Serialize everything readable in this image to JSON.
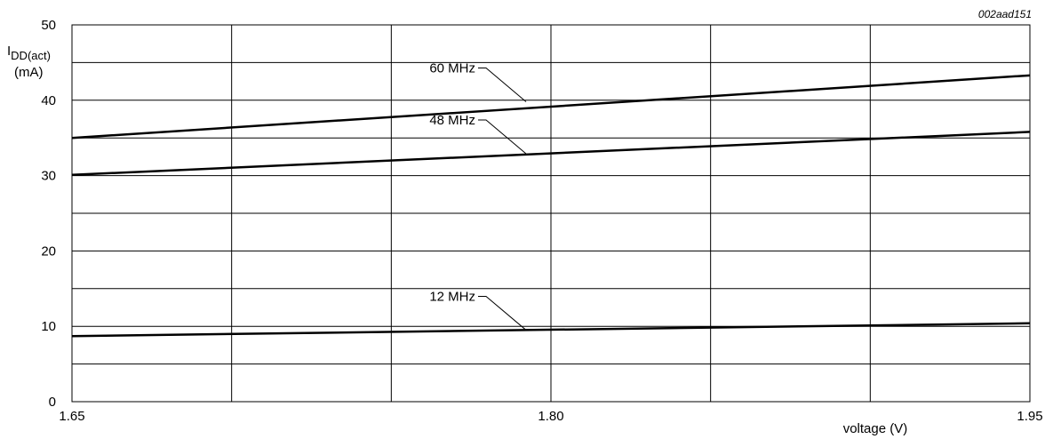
{
  "chart_data": {
    "type": "line",
    "figure_id": "002aad151",
    "ylabel": {
      "main": "I",
      "subscript": "DD(act)",
      "unit": "(mA)"
    },
    "xlabel": "voltage (V)",
    "xlim": [
      1.65,
      1.95
    ],
    "ylim": [
      0,
      50
    ],
    "x_ticks": [
      "1.65",
      "1.80",
      "1.95"
    ],
    "y_ticks": [
      "0",
      "10",
      "20",
      "30",
      "40",
      "50"
    ],
    "grid": true,
    "x_grid_values": [
      1.65,
      1.7,
      1.75,
      1.8,
      1.85,
      1.9,
      1.95
    ],
    "y_grid_values": [
      0,
      5,
      10,
      15,
      20,
      25,
      30,
      35,
      40,
      45,
      50
    ],
    "series": [
      {
        "name": "60 MHz",
        "x": [
          1.65,
          1.95
        ],
        "y": [
          35.0,
          43.3
        ],
        "label_anchor": [
          1.8,
          39.8
        ]
      },
      {
        "name": "48 MHz",
        "x": [
          1.65,
          1.95
        ],
        "y": [
          30.1,
          35.8
        ],
        "label_anchor": [
          1.8,
          32.9
        ]
      },
      {
        "name": "12 MHz",
        "x": [
          1.65,
          1.95
        ],
        "y": [
          8.7,
          10.4
        ],
        "label_anchor": [
          1.8,
          9.5
        ]
      }
    ]
  }
}
